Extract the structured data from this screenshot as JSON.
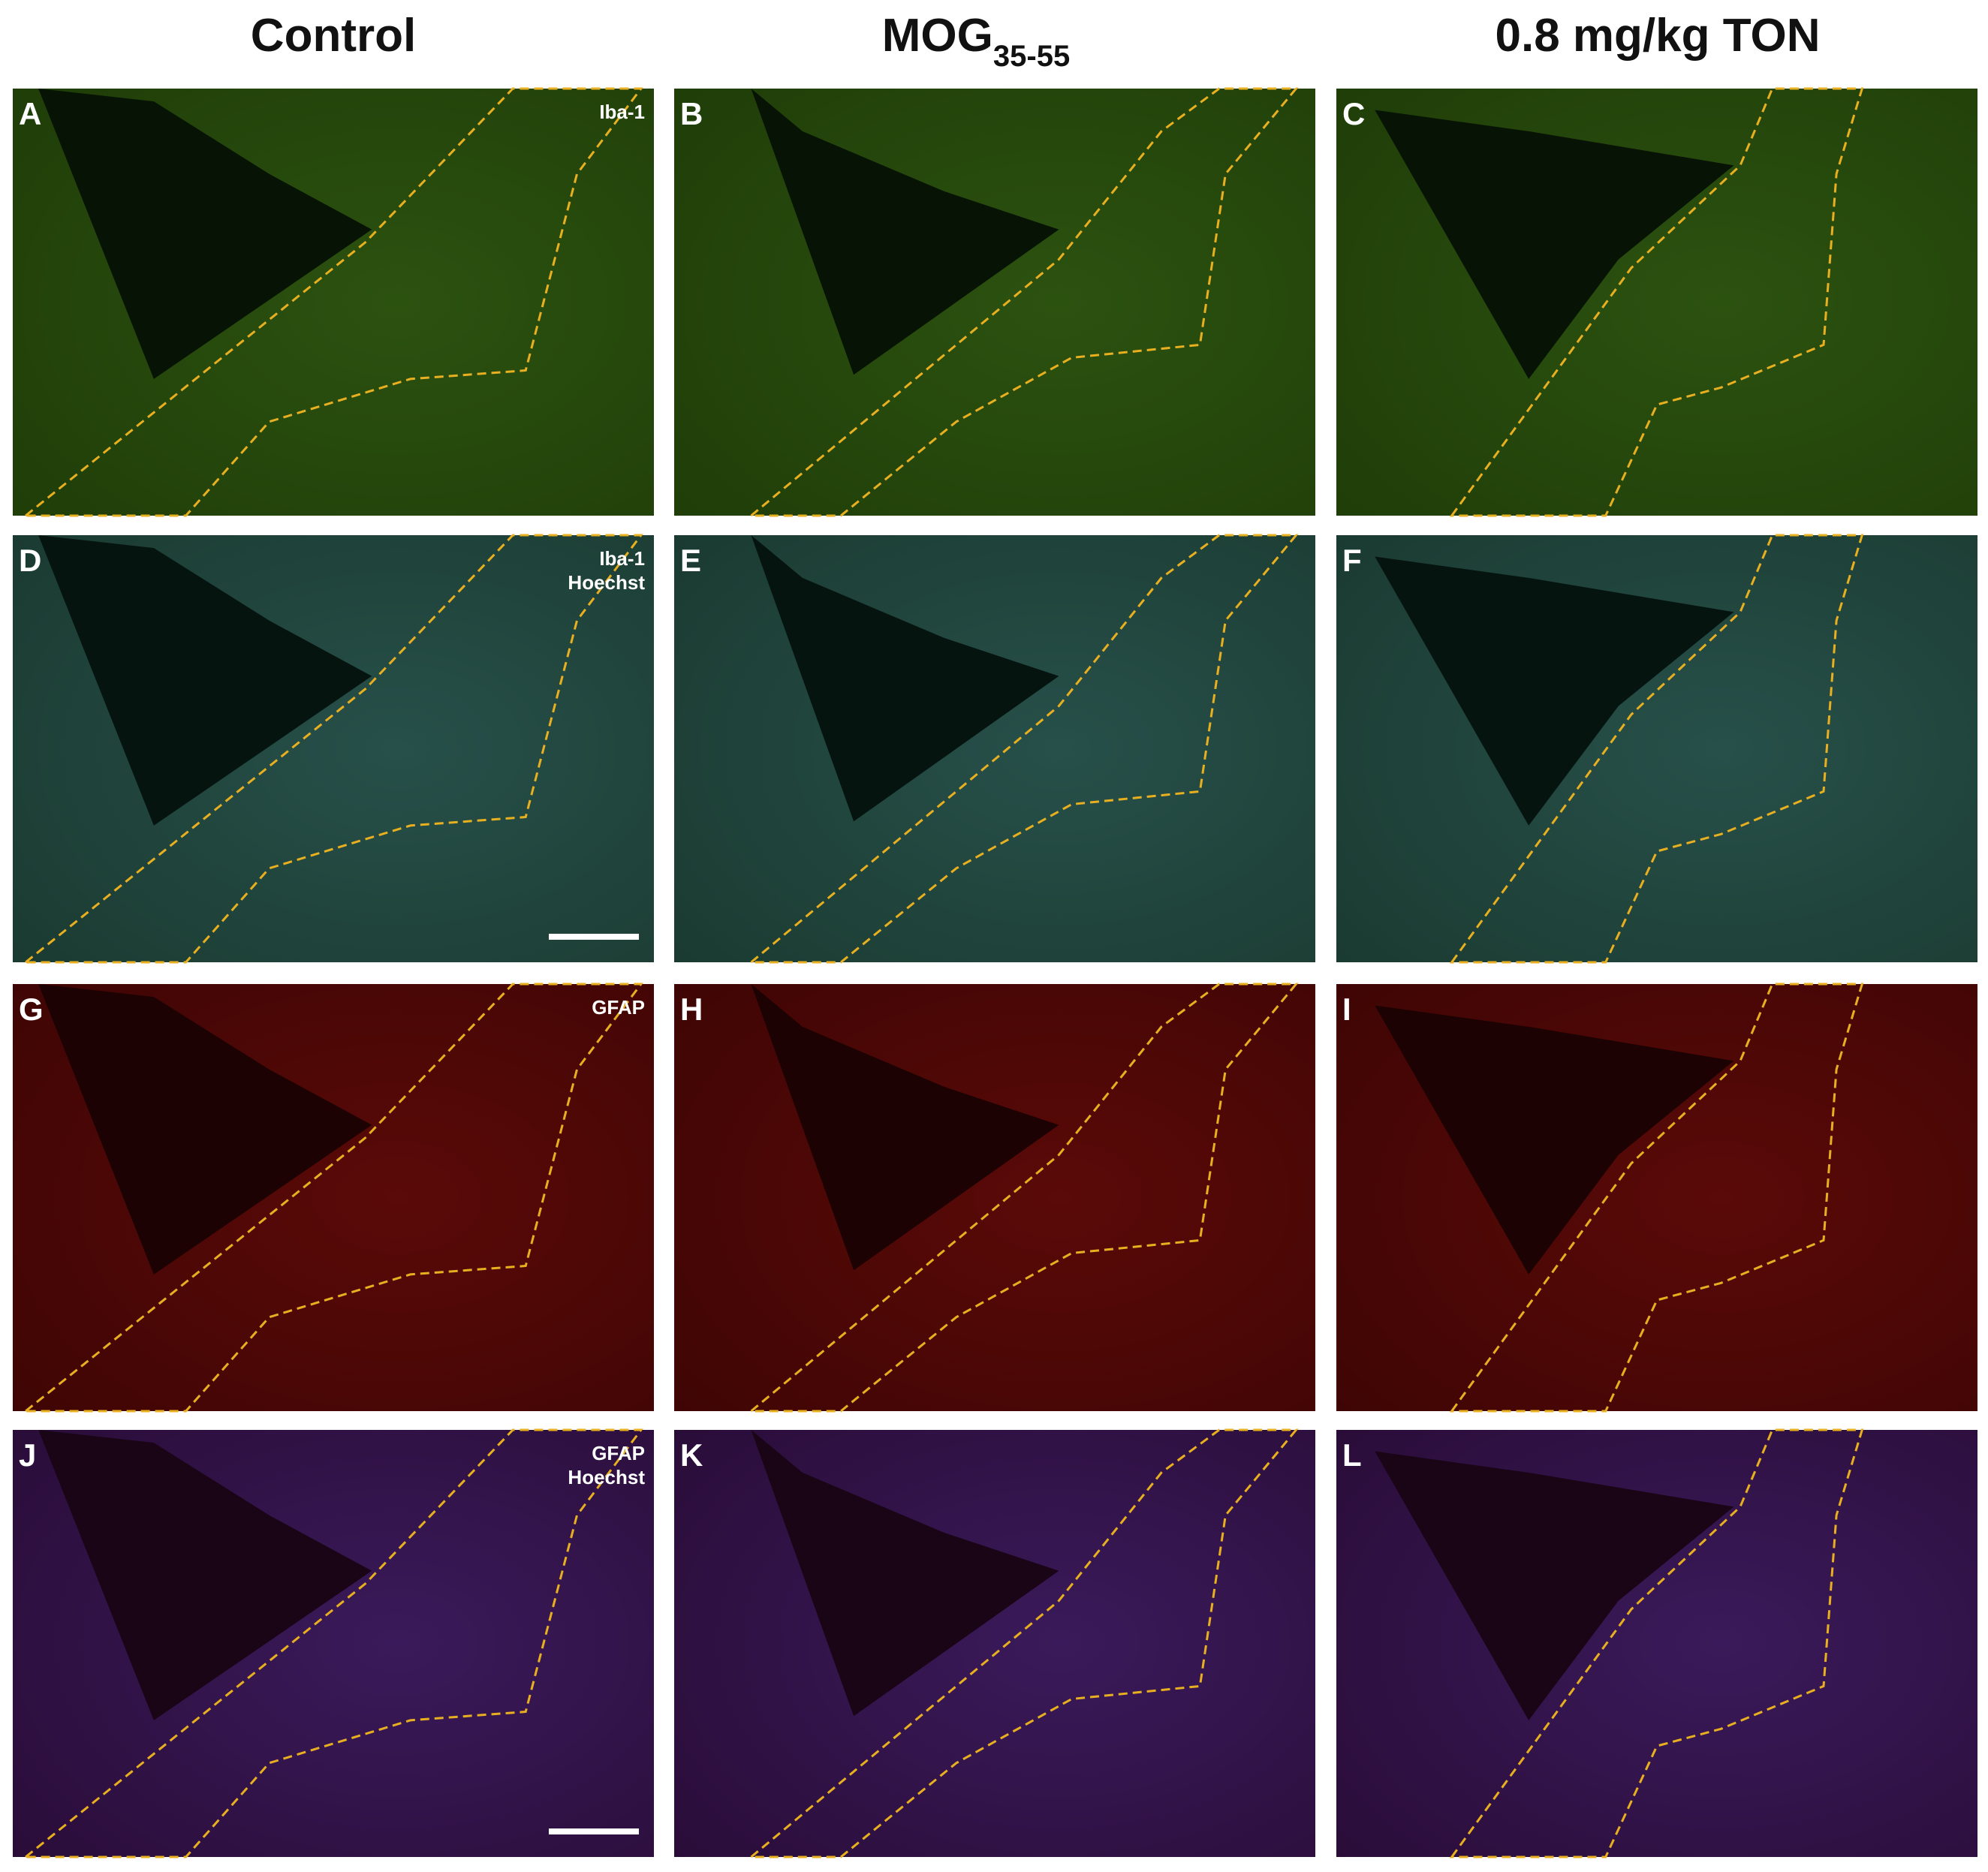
{
  "columns": [
    {
      "title": "Control"
    },
    {
      "title": "MOG",
      "subscript": "35-55"
    },
    {
      "title": "0.8 mg/kg TON"
    }
  ],
  "panels": [
    {
      "letter": "A",
      "label": [
        "Iba-1"
      ]
    },
    {
      "letter": "B"
    },
    {
      "letter": "C"
    },
    {
      "letter": "D",
      "label": [
        "Iba-1",
        "Hoechst"
      ]
    },
    {
      "letter": "E"
    },
    {
      "letter": "F"
    },
    {
      "letter": "G",
      "label": [
        "GFAP"
      ]
    },
    {
      "letter": "H"
    },
    {
      "letter": "I"
    },
    {
      "letter": "J",
      "label": [
        "GFAP",
        "Hoechst"
      ]
    },
    {
      "letter": "K"
    },
    {
      "letter": "L"
    }
  ]
}
